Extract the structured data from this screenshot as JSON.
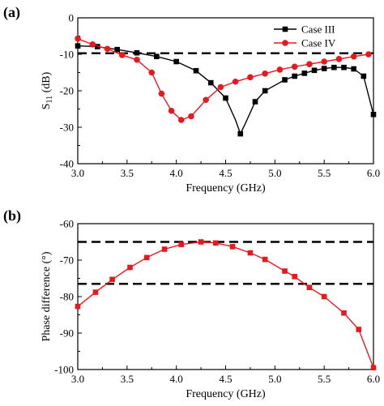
{
  "chart_data": [
    {
      "type": "line",
      "panel_label": "(a)",
      "xlabel": "Frequency (GHz)",
      "ylabel": "S",
      "ylabel_sub": "11",
      "ylabel_unit": " (dB)",
      "xlim": [
        3.0,
        6.0
      ],
      "ylim": [
        -40,
        0
      ],
      "xticks": [
        3.0,
        3.5,
        4.0,
        4.5,
        5.0,
        5.5,
        6.0
      ],
      "xtick_labels": [
        "3.0",
        "3.5",
        "4.0",
        "4.5",
        "5.0",
        "5.5",
        "6.0"
      ],
      "yticks": [
        0,
        -10,
        -20,
        -30,
        -40
      ],
      "ytick_labels": [
        "0",
        "-10",
        "-20",
        "-30",
        "-40"
      ],
      "grid": false,
      "legend_position": "top-right",
      "reference_lines": [
        -9.7
      ],
      "series": [
        {
          "name": "Case III",
          "color": "#000000",
          "marker": "square",
          "x": [
            3.0,
            3.2,
            3.4,
            3.6,
            3.8,
            4.0,
            4.2,
            4.35,
            4.5,
            4.6,
            4.65,
            4.7,
            4.8,
            4.9,
            5.0,
            5.1,
            5.2,
            5.3,
            5.4,
            5.5,
            5.6,
            5.7,
            5.8,
            5.9,
            6.0
          ],
          "y": [
            -7.7,
            -7.9,
            -8.7,
            -9.6,
            -10.6,
            -12.0,
            -14.5,
            -17.8,
            -22.0,
            -28.0,
            -31.8,
            -29.0,
            -23.0,
            -20.0,
            -18.5,
            -17.0,
            -16.0,
            -15.2,
            -14.4,
            -13.9,
            -13.6,
            -13.6,
            -14.0,
            -16.0,
            -26.5
          ],
          "marker_indices": [
            0,
            1,
            2,
            3,
            4,
            5,
            6,
            7,
            8,
            10,
            12,
            13,
            15,
            16,
            17,
            18,
            19,
            20,
            21,
            22,
            23,
            24
          ]
        },
        {
          "name": "Case IV",
          "color": "#e8191e",
          "marker": "circle",
          "x": [
            3.0,
            3.15,
            3.3,
            3.45,
            3.6,
            3.75,
            3.85,
            3.95,
            4.05,
            4.15,
            4.3,
            4.45,
            4.6,
            4.75,
            4.9,
            5.05,
            5.2,
            5.35,
            5.5,
            5.65,
            5.8,
            5.95
          ],
          "y": [
            -5.7,
            -7.3,
            -8.5,
            -10.2,
            -11.5,
            -15.0,
            -20.8,
            -25.5,
            -28.0,
            -27.0,
            -22.5,
            -19.0,
            -17.5,
            -16.3,
            -15.3,
            -14.2,
            -13.4,
            -12.7,
            -12.0,
            -11.3,
            -10.6,
            -10.0
          ]
        }
      ]
    },
    {
      "type": "line",
      "panel_label": "(b)",
      "xlabel": "Frequency (GHz)",
      "ylabel": "Phase difference (°)",
      "xlim": [
        3.0,
        6.0
      ],
      "ylim": [
        -100,
        -60
      ],
      "xticks": [
        3.0,
        3.5,
        4.0,
        4.5,
        5.0,
        5.5,
        6.0
      ],
      "xtick_labels": [
        "3.0",
        "3.5",
        "4.0",
        "4.5",
        "5.0",
        "5.5",
        "6.0"
      ],
      "yticks": [
        -60,
        -70,
        -80,
        -90,
        -100
      ],
      "ytick_labels": [
        "-60",
        "-70",
        "-80",
        "-90",
        "-100"
      ],
      "grid": false,
      "reference_lines": [
        -65,
        -76.5
      ],
      "series": [
        {
          "color": "#e8191e",
          "marker": "square",
          "x": [
            3.0,
            3.18,
            3.35,
            3.53,
            3.7,
            3.88,
            4.05,
            4.25,
            4.4,
            4.57,
            4.75,
            4.9,
            5.1,
            5.2,
            5.35,
            5.5,
            5.7,
            5.85,
            6.0
          ],
          "y": [
            -82.7,
            -78.8,
            -75.3,
            -72.0,
            -69.3,
            -67.0,
            -65.7,
            -65.0,
            -65.3,
            -66.3,
            -68.0,
            -69.8,
            -73.0,
            -74.5,
            -77.5,
            -80.0,
            -84.5,
            -89.0,
            -99.5
          ]
        }
      ]
    }
  ]
}
